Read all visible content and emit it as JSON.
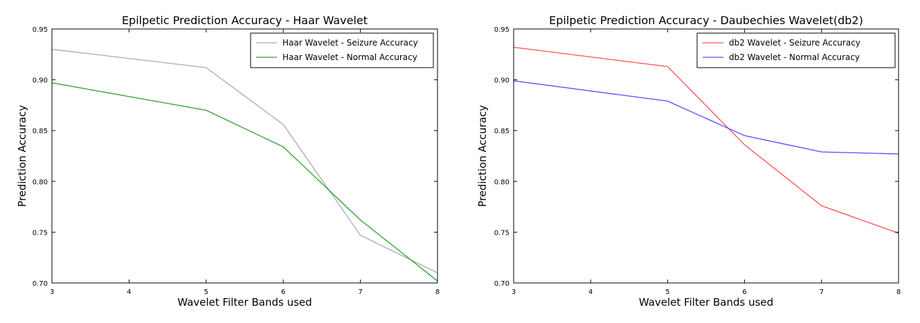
{
  "chart_data": [
    {
      "type": "line",
      "title": "Epilpetic Prediction Accuracy - Haar Wavelet",
      "xlabel": "Wavelet Filter Bands used",
      "ylabel": "Prediction Accuracy",
      "xlim": [
        3,
        8
      ],
      "ylim": [
        0.7,
        0.95
      ],
      "xticks": [
        3,
        4,
        5,
        6,
        7,
        8
      ],
      "yticks": [
        0.7,
        0.75,
        0.8,
        0.85,
        0.9,
        0.95
      ],
      "ytick_labels": [
        "0.70",
        "0.75",
        "0.80",
        "0.85",
        "0.90",
        "0.95"
      ],
      "grid": false,
      "legend_position": "top-right",
      "x": [
        3,
        5,
        6,
        7,
        8
      ],
      "series": [
        {
          "name": "Haar Wavelet - Seizure Accuracy",
          "color": "#a9a9a9",
          "values": [
            0.93,
            0.912,
            0.856,
            0.747,
            0.71
          ]
        },
        {
          "name": "Haar Wavelet - Normal Accuracy",
          "color": "#2ca02c",
          "values": [
            0.897,
            0.87,
            0.834,
            0.762,
            0.702
          ]
        }
      ]
    },
    {
      "type": "line",
      "title": "Epilpetic Prediction Accuracy - Daubechies Wavelet(db2)",
      "xlabel": "Wavelet Filter Bands used",
      "ylabel": "Prediction Accuracy",
      "xlim": [
        3,
        8
      ],
      "ylim": [
        0.7,
        0.95
      ],
      "xticks": [
        3,
        4,
        5,
        6,
        7,
        8
      ],
      "yticks": [
        0.7,
        0.75,
        0.8,
        0.85,
        0.9,
        0.95
      ],
      "ytick_labels": [
        "0.70",
        "0.75",
        "0.80",
        "0.85",
        "0.90",
        "0.95"
      ],
      "grid": false,
      "legend_position": "top-right",
      "x": [
        3,
        5,
        6,
        7,
        8
      ],
      "series": [
        {
          "name": "db2 Wavelet - Seizure Accuracy",
          "color": "#ff4d4d",
          "values": [
            0.932,
            0.913,
            0.836,
            0.776,
            0.749
          ]
        },
        {
          "name": "db2 Wavelet - Normal Accuracy",
          "color": "#4d4dff",
          "values": [
            0.899,
            0.879,
            0.845,
            0.829,
            0.827
          ]
        }
      ]
    }
  ]
}
